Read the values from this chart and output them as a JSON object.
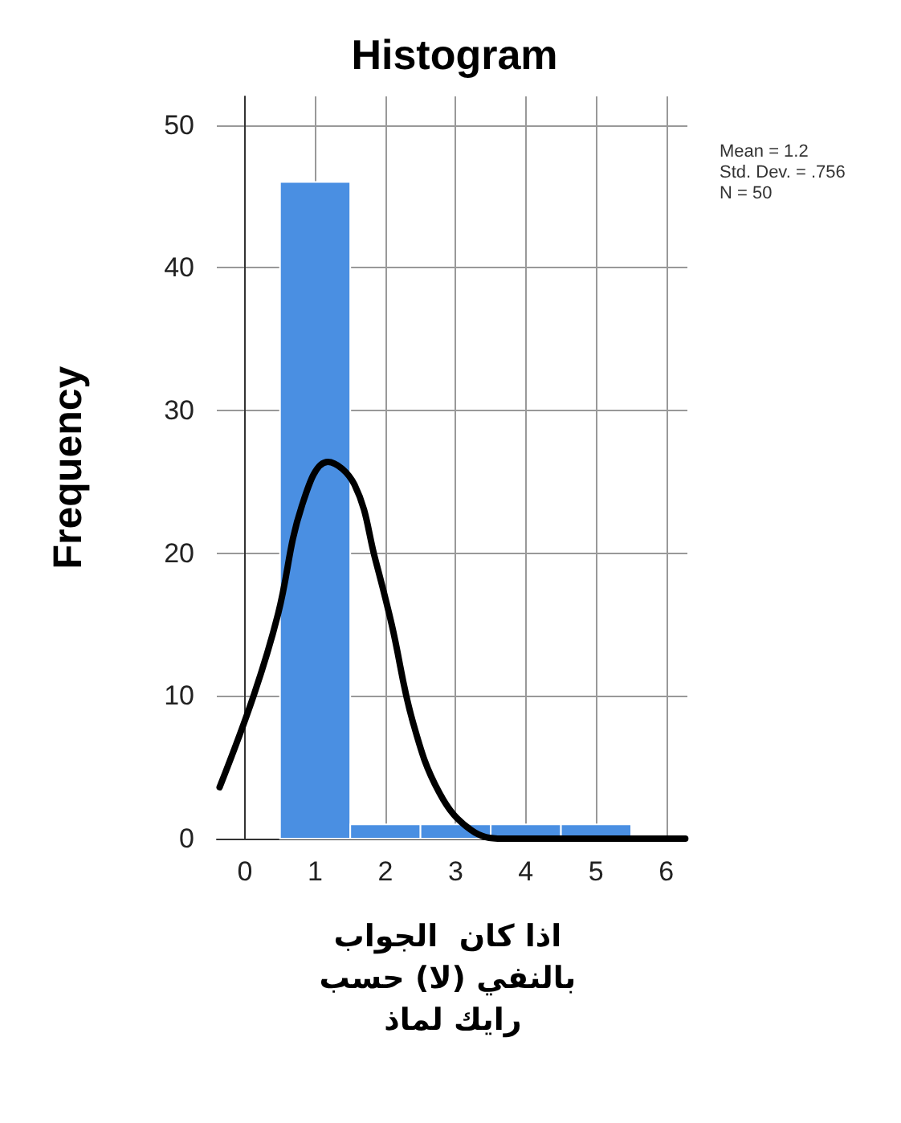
{
  "chart_data": {
    "type": "histogram",
    "title": "Histogram",
    "xlabel": "اذا كان  الجواب بالنفي (لا) حسب رايك لماذ",
    "ylabel": "Frequency",
    "annotations": [
      "Mean = 1.2",
      "Std. Dev. = .756",
      "N = 50"
    ],
    "series": [
      {
        "color": "#4a8fe2",
        "bins": [
          0.5,
          1.5,
          2.5,
          3.5,
          4.5,
          5.5
        ],
        "values": [
          46,
          1,
          1,
          1,
          1
        ]
      },
      {
        "type": "line",
        "color": "#000000",
        "x": [
          -0.36,
          0.13,
          0.47,
          0.81,
          1.18,
          1.56,
          1.86,
          2.09,
          2.39,
          2.77,
          3.22,
          3.67,
          6.27
        ],
        "values": [
          3.6,
          10.1,
          15.7,
          23.3,
          26.4,
          24.8,
          19.5,
          15.0,
          8.2,
          3.2,
          0.6,
          0,
          0
        ]
      }
    ],
    "xlim": [
      -0.4,
      6.3
    ],
    "xticks": [
      0,
      1,
      2,
      3,
      4,
      5,
      6
    ],
    "ylim": [
      0,
      52
    ],
    "yticks": [
      0,
      10,
      20,
      30,
      40,
      50
    ],
    "grid": true,
    "marker": "none",
    "line_style": "solid"
  }
}
